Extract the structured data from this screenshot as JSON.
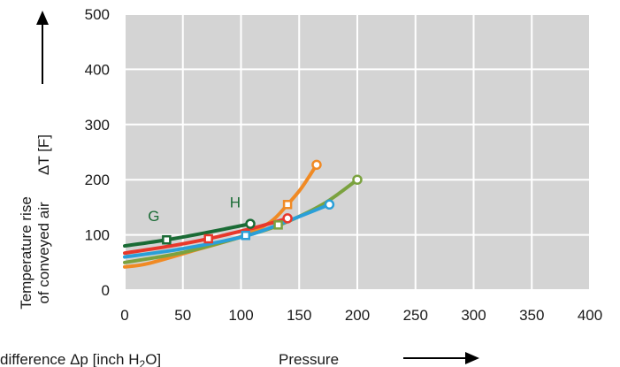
{
  "chart_data": {
    "type": "line",
    "xlim": [
      0,
      400
    ],
    "ylim": [
      0,
      500
    ],
    "x_ticks": [
      0,
      50,
      100,
      150,
      200,
      250,
      300,
      350,
      400
    ],
    "y_ticks": [
      0,
      100,
      200,
      300,
      400,
      500
    ],
    "grid": true,
    "plot_background": "#d4d4d4",
    "grid_color": "#ffffff",
    "ylabel_line1": "Temperature rise",
    "ylabel_line2": "of conveyed air",
    "ylabel_symbol": "ΔT [F]",
    "xlabel_left_pre": "difference Δp [inch H",
    "xlabel_left_sub": "2",
    "xlabel_left_post": "O]",
    "xlabel_right": "Pressure",
    "annotations": [
      {
        "text": "G",
        "x": 25,
        "y": 125,
        "color": "#1a6b35"
      },
      {
        "text": "H",
        "x": 95,
        "y": 150,
        "color": "#1a6b35"
      }
    ],
    "series": [
      {
        "color": "#1a6b35",
        "points": [
          [
            0,
            80
          ],
          [
            36,
            91
          ],
          [
            70,
            104
          ],
          [
            108,
            120
          ]
        ],
        "markers": [
          {
            "x": 36,
            "y": 91,
            "shape": "square"
          },
          {
            "x": 108,
            "y": 120,
            "shape": "circle"
          }
        ]
      },
      {
        "color": "#f08a24",
        "points": [
          [
            0,
            42
          ],
          [
            20,
            48
          ],
          [
            60,
            72
          ],
          [
            100,
            97
          ],
          [
            125,
            123
          ],
          [
            140,
            155
          ],
          [
            152,
            185
          ],
          [
            165,
            227
          ]
        ],
        "markers": [
          {
            "x": 140,
            "y": 155,
            "shape": "square"
          },
          {
            "x": 165,
            "y": 227,
            "shape": "circle"
          }
        ]
      },
      {
        "color": "#7ba23f",
        "points": [
          [
            0,
            50
          ],
          [
            50,
            68
          ],
          [
            100,
            96
          ],
          [
            132,
            117
          ],
          [
            170,
            155
          ],
          [
            200,
            200
          ]
        ],
        "markers": [
          {
            "x": 132,
            "y": 118,
            "shape": "square"
          },
          {
            "x": 200,
            "y": 200,
            "shape": "circle"
          }
        ]
      },
      {
        "color": "#e8382b",
        "points": [
          [
            0,
            67
          ],
          [
            40,
            80
          ],
          [
            72,
            93
          ],
          [
            110,
            112
          ],
          [
            140,
            130
          ]
        ],
        "markers": [
          {
            "x": 72,
            "y": 93,
            "shape": "square"
          },
          {
            "x": 140,
            "y": 130,
            "shape": "circle"
          }
        ]
      },
      {
        "color": "#2a9fd8",
        "points": [
          [
            0,
            60
          ],
          [
            50,
            75
          ],
          [
            104,
            98
          ],
          [
            140,
            125
          ],
          [
            176,
            155
          ]
        ],
        "markers": [
          {
            "x": 104,
            "y": 99,
            "shape": "square"
          },
          {
            "x": 176,
            "y": 155,
            "shape": "circle"
          }
        ]
      }
    ]
  }
}
